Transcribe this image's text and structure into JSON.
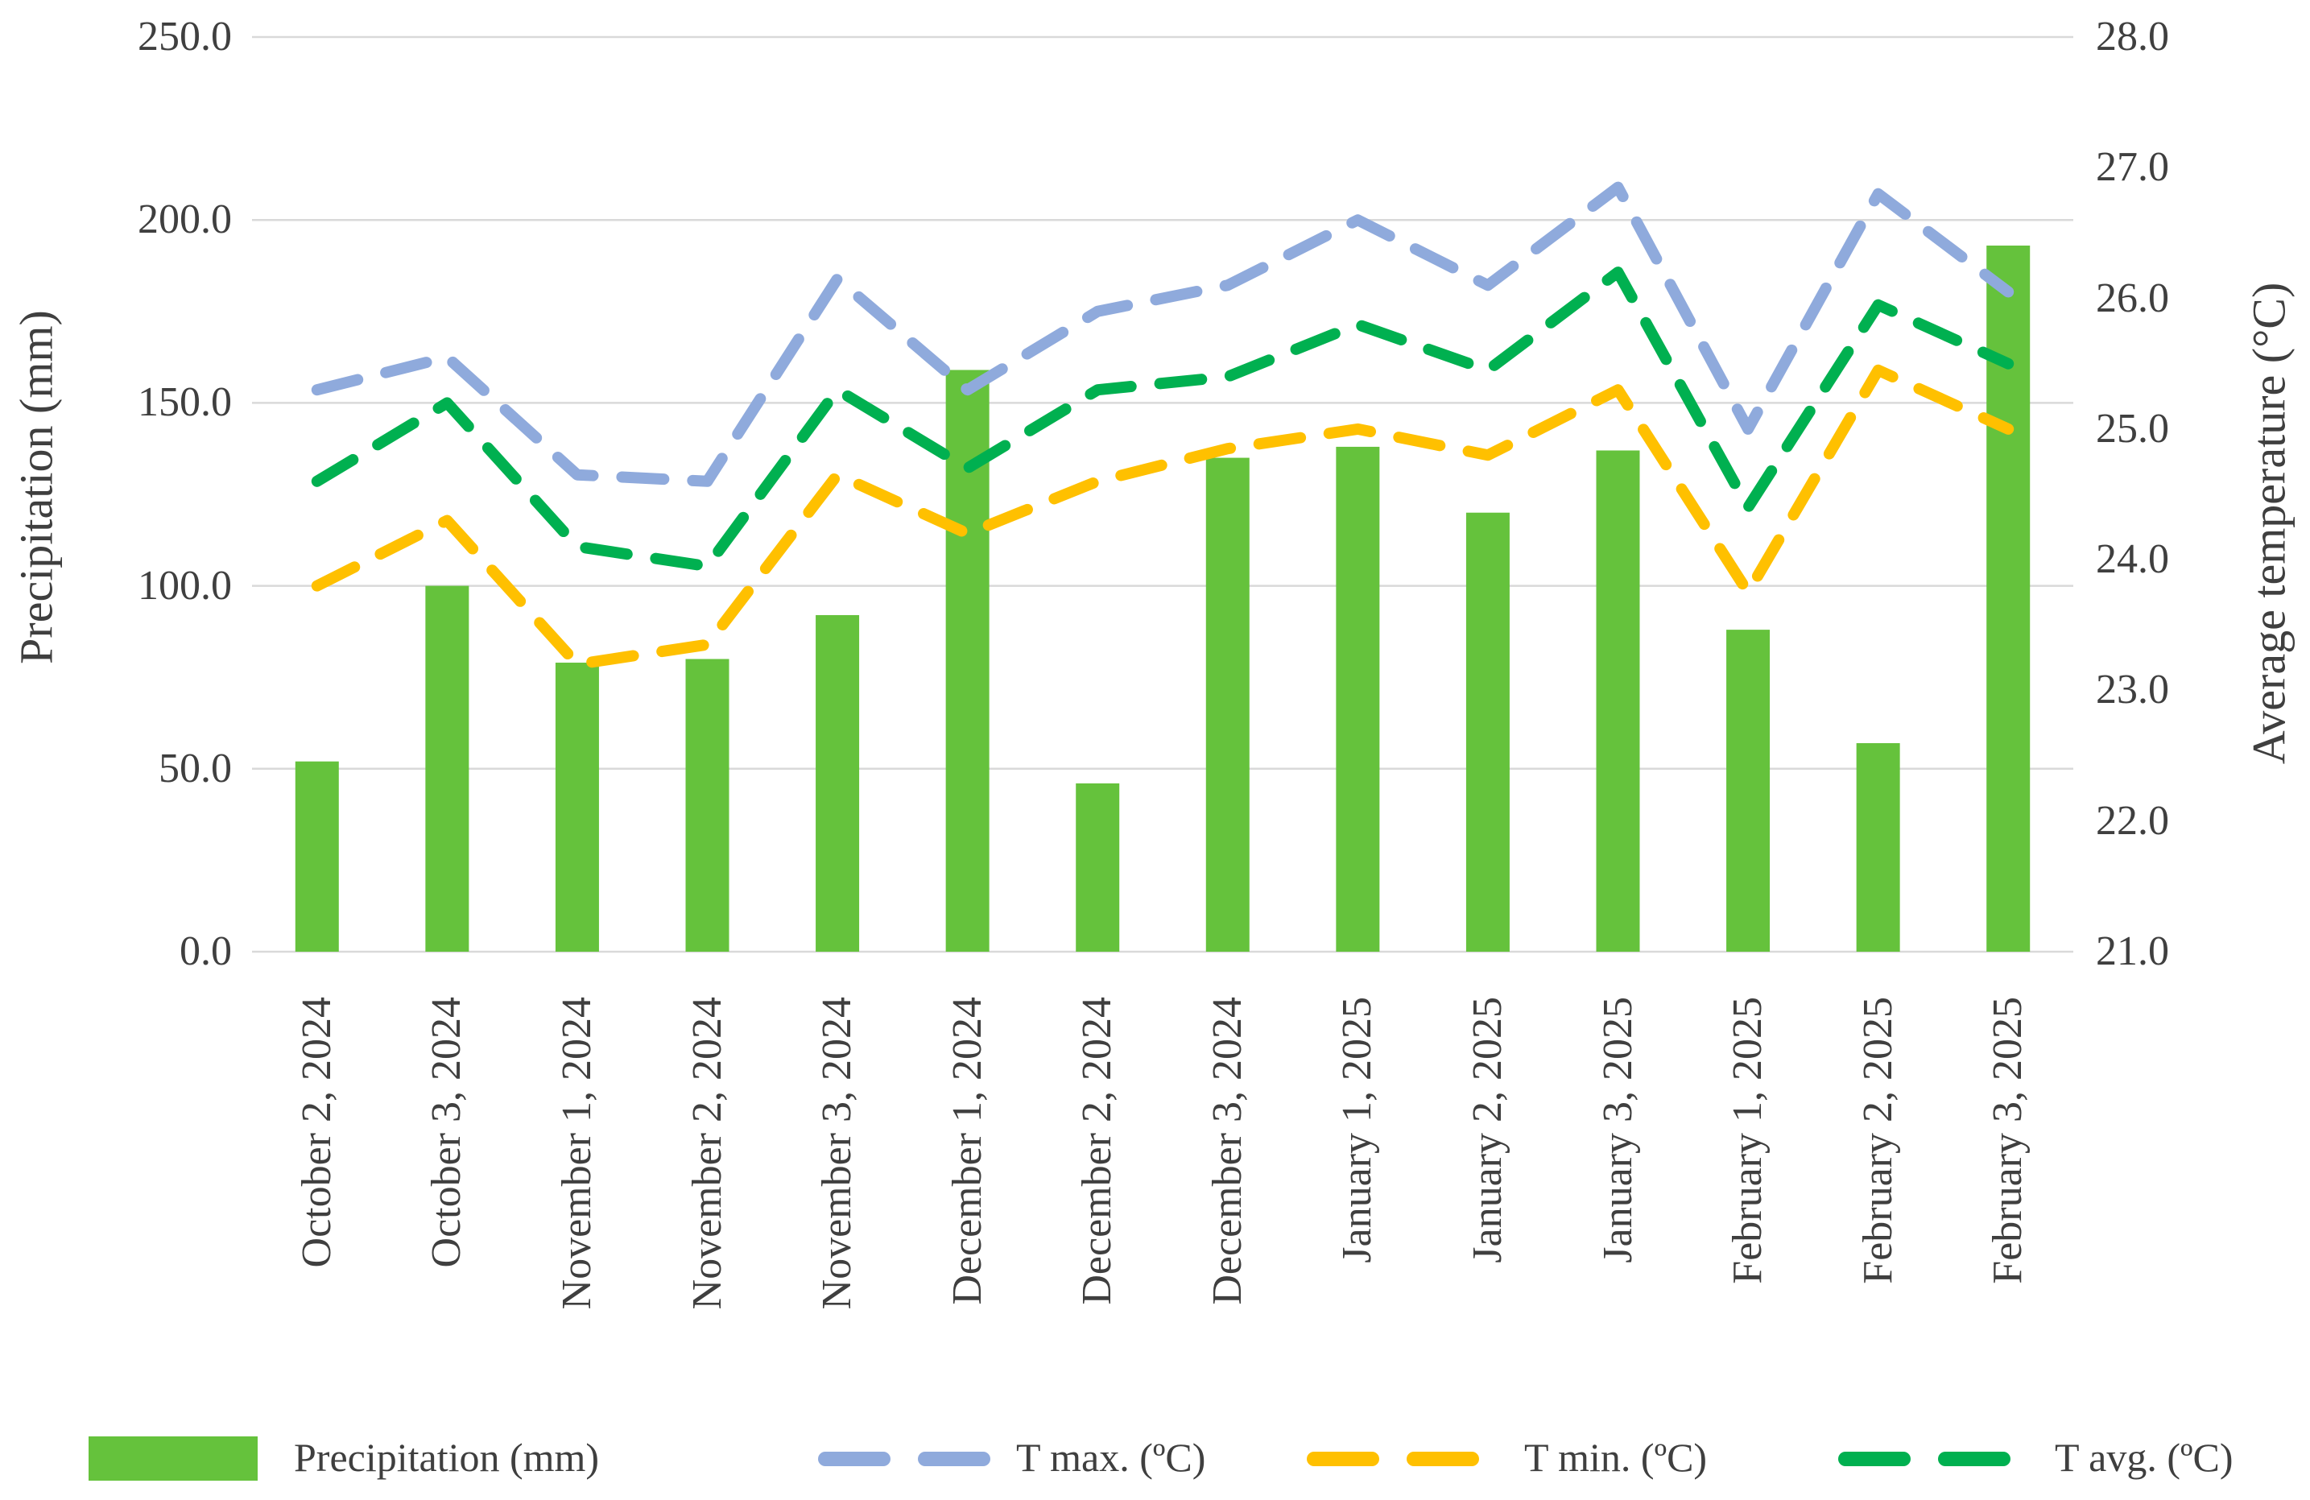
{
  "chart_data": {
    "type": "bar",
    "subtype": "combo-bar-line-dual-axis",
    "categories": [
      "October 2, 2024",
      "October 3, 2024",
      "November 1, 2024",
      "November 2, 2024",
      "November 3, 2024",
      "December 1, 2024",
      "December 2, 2024",
      "December 3, 2024",
      "January 1, 2025",
      "January 2, 2025",
      "January 3, 2025",
      "February 1, 2025",
      "February 2, 2025",
      "February 3, 2025"
    ],
    "series": [
      {
        "name": "Precipitation (mm)",
        "type": "bar",
        "axis": "left",
        "color": "#65C23C",
        "values": [
          52,
          100,
          79,
          80,
          92,
          159,
          46,
          135,
          138,
          120,
          137,
          88,
          57,
          193
        ]
      },
      {
        "name": "T max. (ºC)",
        "type": "line",
        "dash": true,
        "axis": "right",
        "color": "#8FAADC",
        "values": [
          25.3,
          25.55,
          24.65,
          24.6,
          26.15,
          25.3,
          25.9,
          26.1,
          26.6,
          26.1,
          26.85,
          25.0,
          26.8,
          26.05
        ]
      },
      {
        "name": "T min. (ºC)",
        "type": "line",
        "dash": true,
        "axis": "right",
        "color": "#FFC000",
        "values": [
          23.8,
          24.3,
          23.2,
          23.35,
          24.65,
          24.2,
          24.6,
          24.85,
          25.0,
          24.8,
          25.3,
          23.75,
          25.45,
          25.0
        ]
      },
      {
        "name": "T avg. (ºC)",
        "type": "line",
        "dash": true,
        "axis": "right",
        "color": "#00B050",
        "values": [
          24.6,
          25.2,
          24.1,
          23.95,
          25.3,
          24.7,
          25.3,
          25.4,
          25.8,
          25.45,
          26.2,
          24.4,
          25.95,
          25.5
        ]
      }
    ],
    "left_axis": {
      "label": "Precipitation (mm)",
      "min": 0,
      "max": 250,
      "step": 50,
      "tick_decimals": 1
    },
    "right_axis": {
      "label": "Average temperature (°C)",
      "min": 21,
      "max": 28,
      "step": 1,
      "tick_decimals": 1
    },
    "grid": true,
    "legend_position": "bottom",
    "colors": {
      "grid": "#D9D9D9",
      "text": "#3f3f3f",
      "background": "#ffffff"
    }
  }
}
